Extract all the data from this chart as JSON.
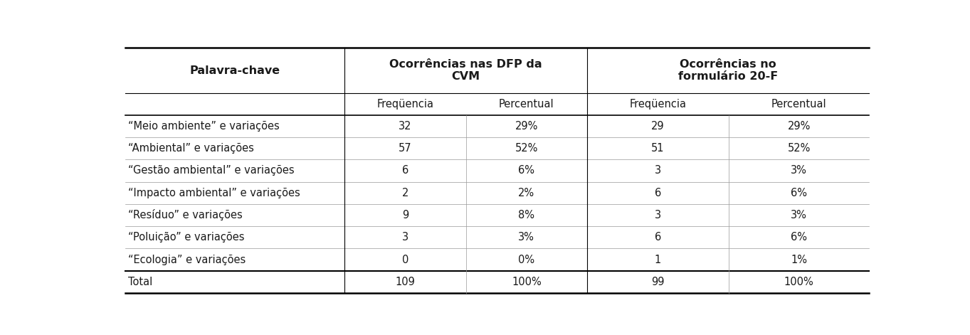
{
  "col_headers_row1": [
    "Palavra-chave",
    "Ocorrências nas DFP da\nCVM",
    "Ocorrências no\nformulário 20-F"
  ],
  "col_headers_row2": [
    "",
    "Freqüencia",
    "Percentual",
    "Freqüencia",
    "Percentual"
  ],
  "rows": [
    [
      "“Meio ambiente” e variações",
      "32",
      "29%",
      "29",
      "29%"
    ],
    [
      "“Ambiental” e variações",
      "57",
      "52%",
      "51",
      "52%"
    ],
    [
      "“Gestão ambiental” e variações",
      "6",
      "6%",
      "3",
      "3%"
    ],
    [
      "“Impacto ambiental” e variações",
      "2",
      "2%",
      "6",
      "6%"
    ],
    [
      "“Resíduo” e variações",
      "9",
      "8%",
      "3",
      "3%"
    ],
    [
      "“Poluição” e variações",
      "3",
      "3%",
      "6",
      "6%"
    ],
    [
      "“Ecologia” e variações",
      "0",
      "0%",
      "1",
      "1%"
    ]
  ],
  "total_row": [
    "Total",
    "109",
    "100%",
    "99",
    "100%"
  ],
  "bg_color": "#ffffff",
  "text_color": "#1a1a1a",
  "font_size": 10.5,
  "header_font_size": 11.5,
  "subheader_font_size": 10.5
}
